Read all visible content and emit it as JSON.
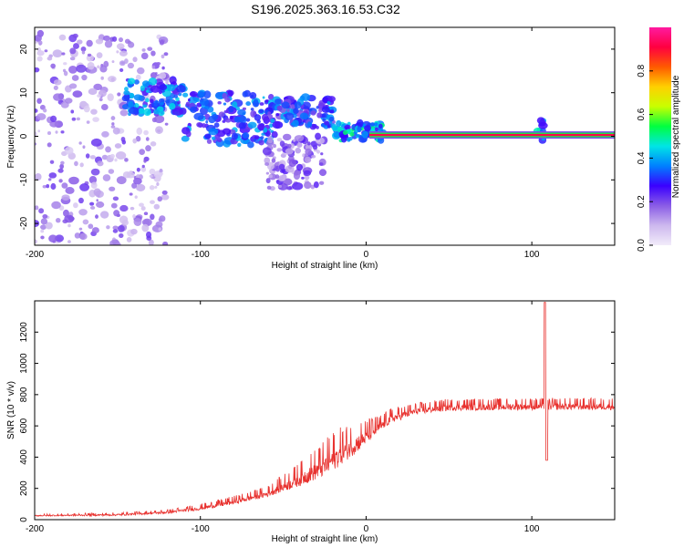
{
  "title": "S196.2025.363.16.53.C32",
  "chart_data": [
    {
      "type": "heatmap",
      "name": "spectrogram",
      "xlabel": "Height of straight line (km)",
      "ylabel": "Frequency (Hz)",
      "xlim": [
        -200,
        150
      ],
      "ylim": [
        -25,
        25
      ],
      "xticks": [
        -200,
        -100,
        0,
        100
      ],
      "xtick_labels": [
        "-200",
        "-100",
        "0",
        "100"
      ],
      "yticks": [
        -20,
        -10,
        0,
        10,
        20
      ],
      "ytick_labels": [
        "-20",
        "-10",
        "0",
        "10",
        "20"
      ],
      "colorbar": {
        "label": "Normalized spectral amplitude",
        "range": [
          0,
          1
        ],
        "ticks": [
          0.0,
          0.2,
          0.4,
          0.6,
          0.8
        ],
        "tick_labels": [
          "0.0",
          "0.2",
          "0.4",
          "0.6",
          "0.8"
        ],
        "colors": [
          "#f2ecfa",
          "#cdb8ee",
          "#8a5ce6",
          "#3a00ff",
          "#0080ff",
          "#00e5e5",
          "#00ff40",
          "#c8ff00",
          "#ffd000",
          "#ff5a00",
          "#ff0040",
          "#ff1aa0"
        ]
      },
      "carrier_line": {
        "x_start": 2,
        "x_end": 150,
        "frequency_hz": 0.3,
        "amplitude": 0.92
      },
      "blob_clusters": [
        {
          "x_range": [
            -200,
            -120
          ],
          "y_range": [
            -25,
            24
          ],
          "amp_range": [
            0.05,
            0.22
          ]
        },
        {
          "x_range": [
            -145,
            -110
          ],
          "y_range": [
            5,
            13
          ],
          "amp_range": [
            0.22,
            0.45
          ]
        },
        {
          "x_range": [
            -110,
            -55
          ],
          "y_range": [
            -2,
            10
          ],
          "amp_range": [
            0.2,
            0.42
          ]
        },
        {
          "x_range": [
            -55,
            -20
          ],
          "y_range": [
            2,
            9
          ],
          "amp_range": [
            0.18,
            0.4
          ]
        },
        {
          "x_range": [
            -60,
            -25
          ],
          "y_range": [
            -12,
            0
          ],
          "amp_range": [
            0.08,
            0.25
          ]
        },
        {
          "x_range": [
            -20,
            10
          ],
          "y_range": [
            -1,
            3
          ],
          "amp_range": [
            0.25,
            0.55
          ]
        },
        {
          "x_range": [
            103,
            107
          ],
          "y_range": [
            -2,
            4
          ],
          "amp_range": [
            0.25,
            0.5
          ]
        }
      ]
    },
    {
      "type": "line",
      "name": "snr",
      "xlabel": "Height of straight line (km)",
      "ylabel": "SNR (10 * v/v)",
      "xlim": [
        -200,
        150
      ],
      "ylim": [
        0,
        1400
      ],
      "xticks": [
        -200,
        -100,
        0,
        100
      ],
      "xtick_labels": [
        "-200",
        "-100",
        "0",
        "100"
      ],
      "yticks": [
        0,
        200,
        400,
        600,
        800,
        1000,
        1200
      ],
      "ytick_labels": [
        "0",
        "200",
        "400",
        "600",
        "800",
        "1000",
        "1200"
      ],
      "color": "#e8322f",
      "profile": {
        "x": [
          -200,
          -150,
          -120,
          -100,
          -80,
          -60,
          -40,
          -25,
          -15,
          -5,
          5,
          15,
          30,
          50,
          100,
          150
        ],
        "y": [
          25,
          30,
          45,
          70,
          110,
          160,
          250,
          330,
          410,
          480,
          560,
          640,
          690,
          715,
          720,
          720
        ]
      },
      "noise": {
        "x": [
          -200,
          -120,
          -60,
          -40,
          -20,
          -10,
          10,
          30,
          150
        ],
        "amplitude": [
          8,
          15,
          40,
          90,
          150,
          130,
          60,
          45,
          45
        ]
      },
      "features": [
        {
          "label": "spike",
          "x": 108,
          "y": 1390
        },
        {
          "label": "dip",
          "x": 109,
          "y": 380
        }
      ]
    }
  ]
}
